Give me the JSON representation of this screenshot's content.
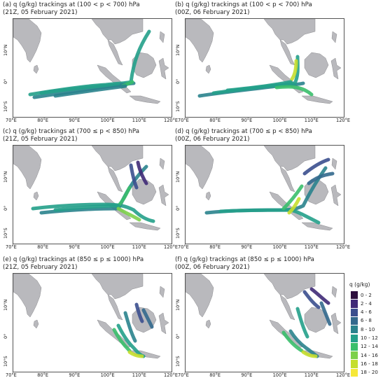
{
  "panels": [
    {
      "id": "a",
      "title_line1": "(a) q (g/kg) trackings at (100 < p < 700) hPa",
      "title_line2": "(21Z, 05 February 2021)"
    },
    {
      "id": "b",
      "title_line1": "(b) q (g/kg) trackings at (100 < p < 700) hPa",
      "title_line2": "(00Z, 06 February 2021)"
    },
    {
      "id": "c",
      "title_line1": "(c) q (g/kg) trackings at (700 ≤ p < 850) hPa",
      "title_line2": "(21Z, 05 February 2021)"
    },
    {
      "id": "d",
      "title_line1": "(d) q (g/kg) trackings at (700 ≤ p < 850) hPa",
      "title_line2": "(00Z, 06 February 2021)"
    },
    {
      "id": "e",
      "title_line1": "(e) q (g/kg) trackings at (850 ≤ p ≤ 1000) hPa",
      "title_line2": "(21Z, 05 February 2021)"
    },
    {
      "id": "f",
      "title_line1": "(f) q (g/kg) trackings at (850 ≤ p ≤ 1000) hPa",
      "title_line2": "(00Z, 06 February 2021)"
    }
  ],
  "axes": {
    "lat_labels": [
      "10°N",
      "0°",
      "10°S"
    ],
    "lon_labels": [
      "70°E",
      "80°E",
      "90°E",
      "100°E",
      "110°E",
      "120°E"
    ]
  },
  "legend": {
    "title": "q (g/kg)",
    "items": [
      {
        "label": "0 - 2",
        "color": "#2e0f3f"
      },
      {
        "label": "2 - 4",
        "color": "#3f2a77"
      },
      {
        "label": "4 - 6",
        "color": "#3b4f8e"
      },
      {
        "label": "6 - 8",
        "color": "#33698d"
      },
      {
        "label": "8 - 10",
        "color": "#2a838d"
      },
      {
        "label": "10 - 12",
        "color": "#23a08a"
      },
      {
        "label": "12 - 14",
        "color": "#3abf6b"
      },
      {
        "label": "14 - 16",
        "color": "#7dd04b"
      },
      {
        "label": "16 - 18",
        "color": "#c5de2c"
      },
      {
        "label": "18 - 20",
        "color": "#f6e838"
      }
    ]
  },
  "colors": {
    "land": "#b9b9bd",
    "land_edge": "#8c8c90",
    "frame": "#555555"
  }
}
